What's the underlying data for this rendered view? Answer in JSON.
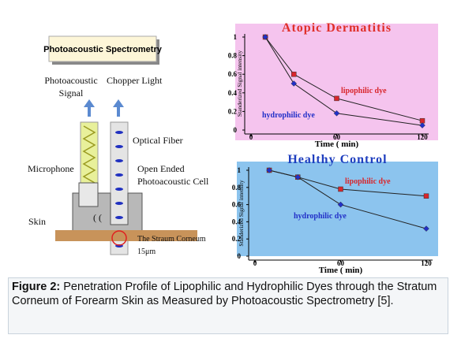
{
  "diagram": {
    "title": "Photoacoustic Spectrometry",
    "signal_label": [
      "Photoacoustic",
      "Signal"
    ],
    "chopper_label": "Chopper Light",
    "fiber_label": "Optical Fiber",
    "microphone_label": "Microphone",
    "cell_label": [
      "Open Ended",
      "Photoacoustic Cell"
    ],
    "skin_label": "Skin",
    "corneum_label": "The Straum Corneum",
    "thickness_label": "15μm"
  },
  "chart_data": [
    {
      "type": "line",
      "title": "Atopic Dermatitis",
      "title_color": "#e0302a",
      "background": "#f5c4ee",
      "x_label": "Time ( min)",
      "y_label": "Standerized Signal intensity",
      "x": [
        10,
        30,
        60,
        120
      ],
      "xlim": [
        0,
        120
      ],
      "xticks": [
        0,
        60,
        120
      ],
      "ylim": [
        0,
        1
      ],
      "yticks": [
        0,
        0.2,
        0.4,
        0.6,
        0.8,
        1
      ],
      "series": [
        {
          "name": "lipophilic dye",
          "color": "#d8262c",
          "values": [
            1,
            0.6,
            0.34,
            0.1
          ]
        },
        {
          "name": "hydrophilic dye",
          "color": "#2230c8",
          "values": [
            1,
            0.5,
            0.18,
            0.05
          ]
        }
      ]
    },
    {
      "type": "line",
      "title": "Healthy Control",
      "title_color": "#1f3fbf",
      "background": "#8cc4ee",
      "x_label": "Time ( min)",
      "y_label": "Standerized Signal intensity",
      "x": [
        10,
        30,
        60,
        120
      ],
      "xlim": [
        0,
        120
      ],
      "xticks": [
        0,
        60,
        120
      ],
      "ylim": [
        0,
        1
      ],
      "yticks": [
        0,
        0.2,
        0.4,
        0.6,
        0.8,
        1
      ],
      "series": [
        {
          "name": "lipophilic dye",
          "color": "#d8262c",
          "values": [
            1,
            0.92,
            0.78,
            0.7
          ]
        },
        {
          "name": "hydrophilic dye",
          "color": "#2230c8",
          "values": [
            1,
            0.92,
            0.6,
            0.32
          ]
        }
      ]
    }
  ],
  "caption": {
    "label": "Figure 2:",
    "text": "Penetration Profile of Lipophilic and Hydrophilic Dyes through the Stratum Corneum of Forearm Skin as Measured by Photoacoustic Spectrometry [5]."
  }
}
